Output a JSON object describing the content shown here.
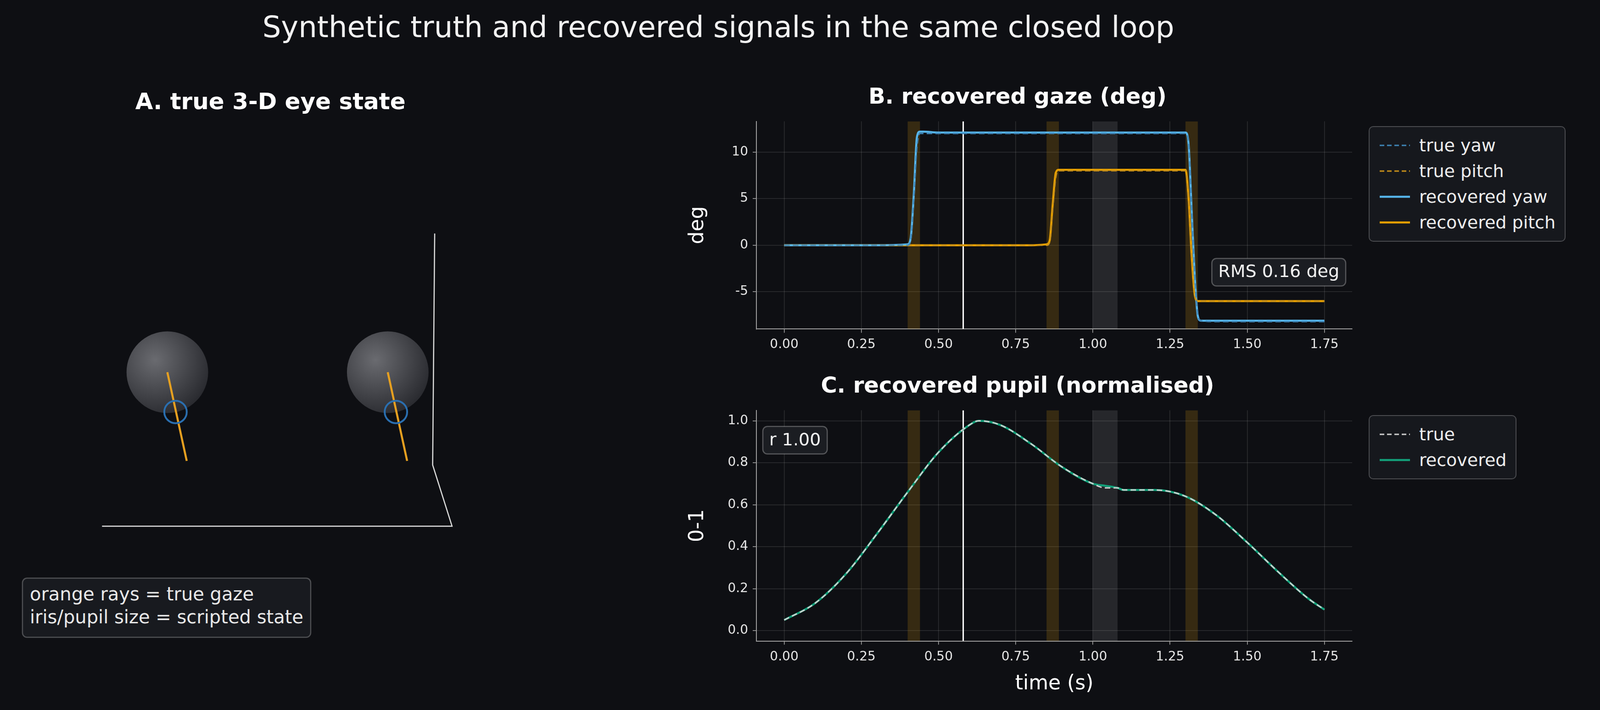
{
  "title": "Synthetic truth and recovered signals in the same closed loop",
  "diagram": {
    "title": "A. true 3-D eye state",
    "note": [
      "orange rays = true gaze",
      "iris/pupil size = scripted state"
    ]
  },
  "chart_data": [
    {
      "type": "line",
      "title": "B. recovered gaze (deg)",
      "y_label": "deg",
      "x": [
        0,
        0.1,
        0.2,
        0.3,
        0.4,
        0.41,
        0.42,
        0.43,
        0.44,
        0.45,
        0.5,
        0.6,
        0.7,
        0.8,
        0.85,
        0.86,
        0.87,
        0.88,
        0.89,
        0.9,
        1.0,
        1.1,
        1.2,
        1.3,
        1.31,
        1.32,
        1.33,
        1.34,
        1.35,
        1.4,
        1.5,
        1.6,
        1.7,
        1.75
      ],
      "series": [
        {
          "name": "true yaw",
          "color": "#3f86b8",
          "line_style": "dashed",
          "values": [
            0,
            0,
            0,
            0,
            0,
            0.6,
            5.0,
            10.5,
            12.0,
            12.0,
            12.0,
            12.0,
            12.0,
            12.0,
            12.0,
            12.0,
            12.0,
            12.0,
            12.0,
            12.0,
            12.0,
            12.0,
            12.0,
            12.0,
            11.0,
            4.0,
            -3.0,
            -7.5,
            -8.1,
            -8.2,
            -8.2,
            -8.2,
            -8.2,
            -8.2
          ]
        },
        {
          "name": "true pitch",
          "color": "#c8901a",
          "line_style": "dashed",
          "values": [
            0,
            0,
            0,
            0,
            0,
            0,
            0,
            0,
            0,
            0,
            0,
            0,
            0,
            0,
            0,
            0.3,
            4.0,
            7.3,
            8.0,
            8.0,
            8.0,
            8.0,
            8.0,
            8.0,
            5.0,
            -1.0,
            -5.2,
            -6.0,
            -6.0,
            -6.0,
            -6.0,
            -6.0,
            -6.0,
            -6.0
          ]
        },
        {
          "name": "recovered yaw",
          "color": "#56b4e9",
          "line_style": "solid",
          "values": [
            0,
            0,
            0,
            0,
            0.1,
            0.8,
            5.5,
            11.6,
            12.2,
            12.2,
            12.1,
            12.1,
            12.1,
            12.1,
            12.1,
            12.1,
            12.1,
            12.1,
            12.1,
            12.1,
            12.1,
            12.1,
            12.1,
            12.1,
            10.9,
            3.8,
            -3.2,
            -7.6,
            -8.1,
            -8.1,
            -8.1,
            -8.1,
            -8.1,
            -8.1
          ]
        },
        {
          "name": "recovered pitch",
          "color": "#e69f00",
          "line_style": "solid",
          "values": [
            0,
            0,
            0,
            0,
            0,
            0,
            0,
            0,
            0,
            0,
            0,
            0,
            0,
            0,
            0.1,
            0.5,
            4.4,
            7.8,
            8.1,
            8.1,
            8.1,
            8.1,
            8.1,
            8.1,
            5.1,
            -1.1,
            -5.3,
            -6.0,
            -6.0,
            -6.0,
            -6.0,
            -6.0,
            -6.0,
            -6.0
          ]
        }
      ],
      "xlim": [
        -0.09,
        1.84
      ],
      "xticks": [
        {
          "value": 0,
          "label": "0.00"
        },
        0.25,
        {
          "value": 0.5,
          "label": "0.50"
        },
        0.75,
        {
          "value": 1,
          "label": "1.00"
        },
        1.25,
        {
          "value": 1.5,
          "label": "1.50"
        },
        1.75
      ],
      "ylim": [
        -9.0,
        13.3
      ],
      "yticks": [
        -5,
        0,
        5,
        10
      ],
      "grid": true,
      "legend": "right",
      "annotation": "RMS 0.16 deg",
      "saccade_bands": [
        [
          0.4,
          0.44
        ],
        [
          0.85,
          0.89
        ],
        [
          1.3,
          1.34
        ]
      ],
      "gap_band": [
        1.0,
        1.08
      ],
      "cursor": 0.58
    },
    {
      "type": "line",
      "title": "C. recovered pupil (normalised)",
      "x_label": "time (s)",
      "y_label": "0-1",
      "x": [
        0,
        0.1,
        0.2,
        0.3,
        0.4,
        0.5,
        0.6,
        0.63,
        0.7,
        0.8,
        0.9,
        1.0,
        1.04,
        1.08,
        1.1,
        1.2,
        1.3,
        1.4,
        1.5,
        1.6,
        1.7,
        1.75
      ],
      "series": [
        {
          "name": "true",
          "color": "#cfcfcf",
          "line_style": "dashed",
          "values": [
            0.05,
            0.13,
            0.27,
            0.46,
            0.66,
            0.85,
            0.98,
            1.0,
            0.98,
            0.89,
            0.78,
            0.7,
            0.68,
            0.68,
            0.67,
            0.67,
            0.64,
            0.55,
            0.42,
            0.28,
            0.15,
            0.1
          ]
        },
        {
          "name": "recovered",
          "color": "#13a07a",
          "line_style": "solid",
          "values": [
            0.05,
            0.13,
            0.27,
            0.46,
            0.66,
            0.85,
            0.98,
            1.0,
            0.98,
            0.89,
            0.78,
            0.7,
            0.69,
            0.68,
            0.67,
            0.67,
            0.64,
            0.55,
            0.42,
            0.28,
            0.15,
            0.1
          ]
        }
      ],
      "xlim": [
        -0.09,
        1.84
      ],
      "xticks": [
        {
          "value": 0,
          "label": "0.00"
        },
        0.25,
        {
          "value": 0.5,
          "label": "0.50"
        },
        0.75,
        {
          "value": 1,
          "label": "1.00"
        },
        1.25,
        {
          "value": 1.5,
          "label": "1.50"
        },
        1.75
      ],
      "ylim": [
        -0.05,
        1.05
      ],
      "yticks": [
        {
          "value": 0,
          "label": "0.0"
        },
        0.2,
        0.4,
        0.6,
        0.8,
        {
          "value": 1,
          "label": "1.0"
        }
      ],
      "grid": true,
      "legend": "right",
      "annotation": "r 1.00",
      "saccade_bands": [
        [
          0.4,
          0.44
        ],
        [
          0.85,
          0.89
        ],
        [
          1.3,
          1.34
        ]
      ],
      "gap_band": [
        1.0,
        1.08
      ],
      "cursor": 0.58
    }
  ]
}
